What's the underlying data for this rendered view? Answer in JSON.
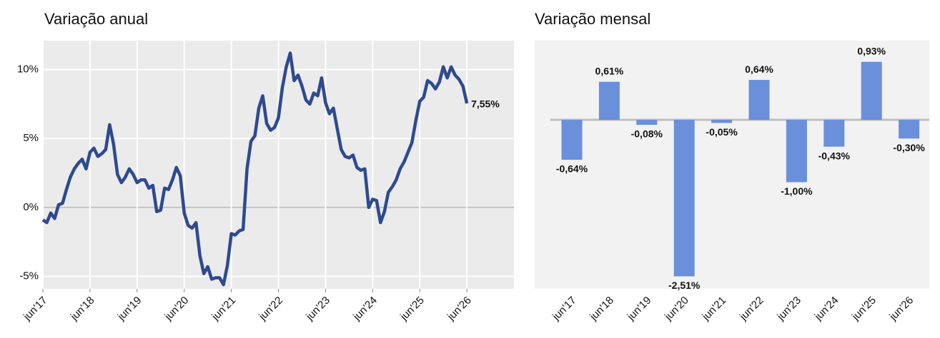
{
  "chart_data": [
    {
      "type": "line",
      "title": "Variação anual",
      "categories": [
        "jun'17",
        null,
        null,
        null,
        null,
        null,
        null,
        null,
        null,
        null,
        null,
        null,
        "jun'18",
        null,
        null,
        null,
        null,
        null,
        null,
        null,
        null,
        null,
        null,
        null,
        "jun'19",
        null,
        null,
        null,
        null,
        null,
        null,
        null,
        null,
        null,
        null,
        null,
        "jun'20",
        null,
        null,
        null,
        null,
        null,
        null,
        null,
        null,
        null,
        null,
        null,
        "jun'21",
        null,
        null,
        null,
        null,
        null,
        null,
        null,
        null,
        null,
        null,
        null,
        "jun'22",
        null,
        null,
        null,
        null,
        null,
        null,
        null,
        null,
        null,
        null,
        null,
        "jun'23",
        null,
        null,
        null,
        null,
        null,
        null,
        null,
        null,
        null,
        null,
        null,
        "jun'24",
        null,
        null,
        null,
        null,
        null,
        null,
        null,
        null,
        null,
        null,
        null,
        "jun'25",
        null,
        null,
        null,
        null,
        null,
        null,
        null,
        null,
        null,
        null,
        null,
        "jun'26"
      ],
      "values": [
        -0.9,
        -1.1,
        -0.4,
        -0.8,
        0.2,
        0.3,
        1.3,
        2.2,
        2.8,
        3.2,
        3.5,
        2.8,
        4.0,
        4.3,
        3.7,
        3.9,
        4.2,
        6.0,
        4.6,
        2.4,
        1.8,
        2.2,
        2.8,
        2.4,
        1.8,
        2.0,
        2.0,
        1.4,
        1.6,
        -0.3,
        -0.2,
        1.4,
        1.3,
        2.0,
        2.9,
        2.3,
        -0.4,
        -1.3,
        -1.5,
        -1.1,
        -3.5,
        -4.8,
        -4.3,
        -5.2,
        -5.1,
        -5.1,
        -5.6,
        -4.2,
        -1.9,
        -2.0,
        -1.7,
        -1.6,
        2.8,
        4.8,
        5.2,
        7.2,
        8.1,
        6.1,
        5.6,
        5.8,
        6.5,
        8.7,
        10.2,
        11.2,
        9.2,
        9.6,
        8.8,
        7.8,
        7.5,
        8.3,
        8.1,
        9.4,
        7.6,
        6.8,
        7.2,
        5.7,
        4.2,
        3.7,
        3.6,
        3.8,
        2.9,
        2.7,
        2.8,
        0.0,
        0.6,
        0.5,
        -1.1,
        -0.3,
        1.1,
        1.5,
        2.0,
        2.8,
        3.3,
        4.0,
        4.7,
        6.3,
        7.7,
        8.0,
        9.2,
        9.0,
        8.6,
        9.1,
        10.2,
        9.4,
        10.2,
        9.6,
        9.3,
        8.8,
        7.55
      ],
      "value_labels": [
        null,
        null,
        null,
        null,
        null,
        null,
        null,
        null,
        null,
        null,
        null,
        null,
        null,
        null,
        null,
        null,
        null,
        null,
        null,
        null,
        null,
        null,
        null,
        null,
        null,
        null,
        null,
        null,
        null,
        null,
        null,
        null,
        null,
        null,
        null,
        null,
        null,
        null,
        null,
        null,
        null,
        null,
        null,
        null,
        null,
        null,
        null,
        null,
        null,
        null,
        null,
        null,
        null,
        null,
        null,
        null,
        null,
        null,
        null,
        null,
        null,
        null,
        null,
        null,
        null,
        null,
        null,
        null,
        null,
        null,
        null,
        null,
        null,
        null,
        null,
        null,
        null,
        null,
        null,
        null,
        null,
        null,
        null,
        null,
        null,
        null,
        null,
        null,
        null,
        null,
        null,
        null,
        null,
        null,
        null,
        null,
        null,
        null,
        null,
        null,
        null,
        null,
        null,
        null,
        null,
        null,
        null,
        null,
        "7,55%"
      ],
      "color": "#2e4a8f",
      "ylim": [
        -5.9,
        12.1
      ],
      "yticks": [
        {
          "value": -5,
          "label": "-5%"
        },
        {
          "value": 0,
          "label": "0%"
        },
        {
          "value": 5,
          "label": "5%"
        },
        {
          "value": 10,
          "label": "10%"
        }
      ],
      "grid": true
    },
    {
      "type": "bar",
      "title": "Variação mensal",
      "categories": [
        "jun'17",
        "jun'18",
        "jun'19",
        "jun'20",
        "jun'21",
        "jun'22",
        "jun'23",
        "jun'24",
        "jun'25",
        "jun'26"
      ],
      "values": [
        -0.64,
        0.61,
        -0.08,
        -2.51,
        -0.05,
        0.64,
        -1.0,
        -0.43,
        0.93,
        -0.3
      ],
      "value_labels": [
        "-0,64%",
        "0,61%",
        "-0,08%",
        "-2,51%",
        "-0,05%",
        "0,64%",
        "-1,00%",
        "-0,43%",
        "0,93%",
        "-0,30%"
      ],
      "color": "#6a8fdb",
      "ylim": [
        -2.71,
        1.27
      ]
    }
  ]
}
